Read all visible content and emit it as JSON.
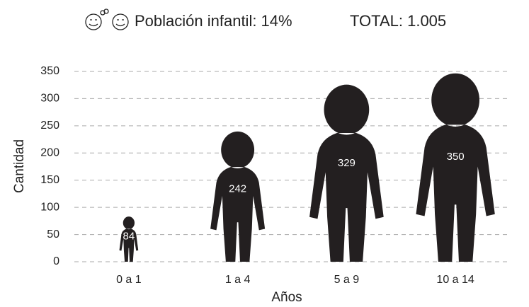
{
  "chart_data": {
    "type": "pictograph",
    "title": "Población infantil: 14%",
    "subtitle": "TOTAL: 1.005",
    "x_label": "Años",
    "y_label": "Cantidad",
    "categories": [
      "0 a 1",
      "1 a 4",
      "5 a 9",
      "10 a 14"
    ],
    "values": [
      84,
      242,
      329,
      350
    ],
    "color": "#231f20",
    "ylim": [
      0,
      350
    ],
    "yticks": [
      0,
      50,
      100,
      150,
      200,
      250,
      300,
      350
    ],
    "grid": true
  }
}
